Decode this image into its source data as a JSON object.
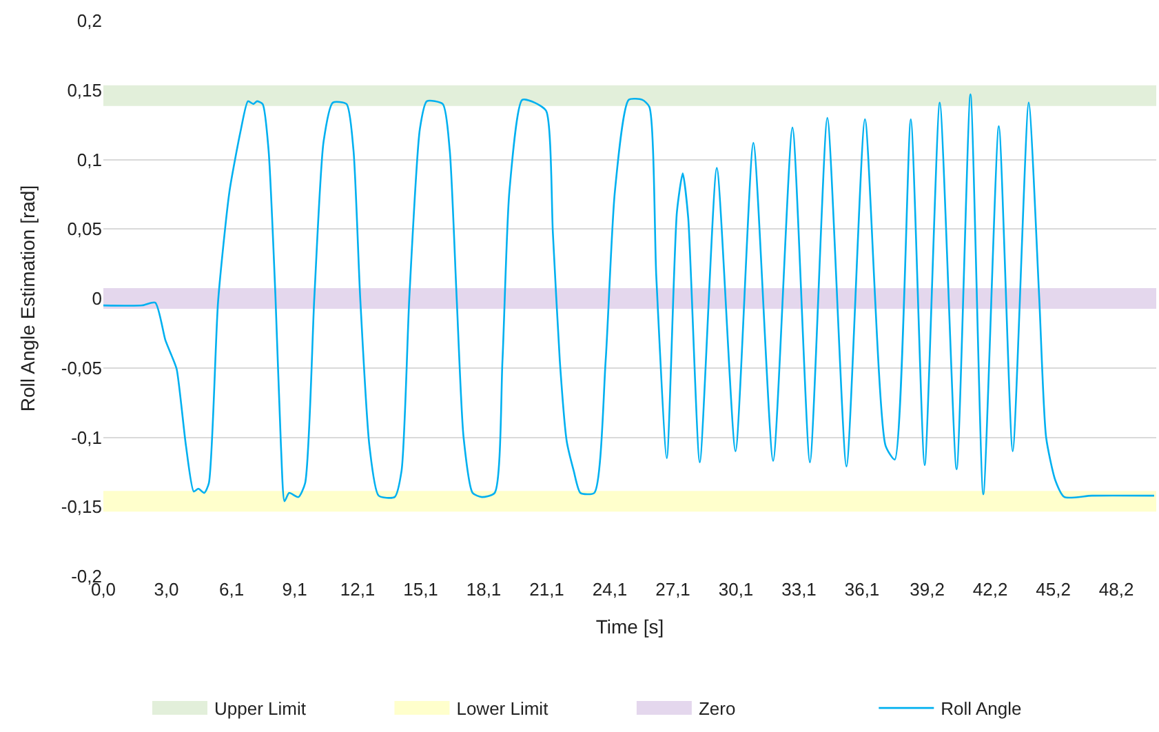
{
  "chart_data": {
    "type": "line",
    "xlabel": "Time [s]",
    "ylabel": "Roll Angle Estimation [rad]",
    "xlim": [
      0,
      50.1
    ],
    "ylim": [
      -0.2,
      0.2
    ],
    "xticks": [
      {
        "value": 0,
        "label": "0,0"
      },
      {
        "value": 3.0,
        "label": "3,0"
      },
      {
        "value": 6.1,
        "label": "6,1"
      },
      {
        "value": 9.1,
        "label": "9,1"
      },
      {
        "value": 12.1,
        "label": "12,1"
      },
      {
        "value": 15.1,
        "label": "15,1"
      },
      {
        "value": 18.1,
        "label": "18,1"
      },
      {
        "value": 21.1,
        "label": "21,1"
      },
      {
        "value": 24.1,
        "label": "24,1"
      },
      {
        "value": 27.1,
        "label": "27,1"
      },
      {
        "value": 30.1,
        "label": "30,1"
      },
      {
        "value": 33.1,
        "label": "33,1"
      },
      {
        "value": 36.1,
        "label": "36,1"
      },
      {
        "value": 39.2,
        "label": "39,2"
      },
      {
        "value": 42.2,
        "label": "42,2"
      },
      {
        "value": 45.2,
        "label": "45,2"
      },
      {
        "value": 48.2,
        "label": "48,2"
      }
    ],
    "yticks": [
      {
        "value": -0.2,
        "label": "-0,2"
      },
      {
        "value": -0.15,
        "label": "-0,15"
      },
      {
        "value": -0.1,
        "label": "-0,1"
      },
      {
        "value": -0.05,
        "label": "-0,05"
      },
      0,
      {
        "value": 0.05,
        "label": "0,05"
      },
      {
        "value": 0.1,
        "label": "0,1"
      },
      {
        "value": 0.15,
        "label": "0,15"
      },
      {
        "value": 0.2,
        "label": "0,2"
      }
    ],
    "grid": "y",
    "legend": "bottom",
    "marker": "none",
    "line_style": "solid",
    "series": [
      {
        "name": "Upper Limit",
        "color": "#e2efda",
        "x": [
          0,
          50.1
        ],
        "values": [
          0.146,
          0.146
        ]
      },
      {
        "name": "Lower Limit",
        "color": "#ffffcc",
        "x": [
          0,
          50.1
        ],
        "values": [
          -0.146,
          -0.146
        ]
      },
      {
        "name": "Zero",
        "color": "#e4d7ed",
        "x": [
          0,
          50.1
        ],
        "values": [
          0,
          0
        ]
      },
      {
        "name": "Roll Angle",
        "color": "#00b0f0",
        "x": [
          0,
          1.85,
          2.47,
          2.95,
          3.27,
          3.49,
          3.93,
          4.3,
          4.52,
          4.8,
          5.02,
          5.46,
          6.0,
          6.55,
          6.88,
          7.14,
          7.31,
          7.58,
          7.86,
          8.19,
          8.45,
          8.62,
          8.84,
          9.28,
          9.6,
          10.04,
          10.48,
          10.92,
          11.57,
          11.9,
          12.22,
          12.66,
          13.1,
          13.86,
          14.19,
          14.56,
          15.06,
          15.39,
          16.15,
          16.48,
          16.81,
          17.14,
          17.57,
          18.01,
          18.62,
          18.99,
          19.32,
          19.93,
          20.52,
          21.07,
          21.39,
          21.72,
          22.05,
          22.38,
          22.7,
          23.36,
          23.9,
          24.34,
          25.0,
          25.65,
          25.98,
          26.31,
          26.81,
          27.29,
          27.57,
          27.83,
          28.38,
          29.19,
          30.08,
          30.93,
          31.87,
          32.79,
          33.62,
          34.45,
          35.36,
          36.24,
          37.22,
          37.66,
          38.42,
          39.08,
          39.8,
          40.6,
          41.26,
          41.87,
          42.61,
          43.27,
          44.03,
          44.53,
          44.86,
          45.3,
          45.73,
          47.04,
          50.0
        ],
        "values": [
          -0.005,
          -0.005,
          -0.003,
          -0.03,
          -0.042,
          -0.051,
          -0.106,
          -0.139,
          -0.137,
          -0.14,
          -0.133,
          -0.002,
          0.077,
          0.122,
          0.142,
          0.14,
          0.142,
          0.14,
          0.107,
          0.001,
          -0.106,
          -0.146,
          -0.14,
          -0.143,
          -0.133,
          0.001,
          0.113,
          0.141,
          0.14,
          0.107,
          0.001,
          -0.106,
          -0.142,
          -0.143,
          -0.124,
          0.001,
          0.122,
          0.142,
          0.14,
          0.107,
          0.001,
          -0.1,
          -0.14,
          -0.143,
          -0.14,
          -0.045,
          0.077,
          0.143,
          0.141,
          0.135,
          0.047,
          -0.045,
          -0.103,
          -0.124,
          -0.14,
          -0.14,
          -0.045,
          0.077,
          0.143,
          0.143,
          0.138,
          0.016,
          -0.115,
          0.062,
          0.09,
          0.058,
          -0.118,
          0.094,
          -0.11,
          0.112,
          -0.117,
          0.123,
          -0.118,
          0.13,
          -0.121,
          0.129,
          -0.106,
          -0.116,
          0.129,
          -0.12,
          0.141,
          -0.123,
          0.147,
          -0.141,
          0.124,
          -0.11,
          0.141,
          0.001,
          -0.1,
          -0.131,
          -0.143,
          -0.142,
          -0.142
        ]
      }
    ]
  }
}
